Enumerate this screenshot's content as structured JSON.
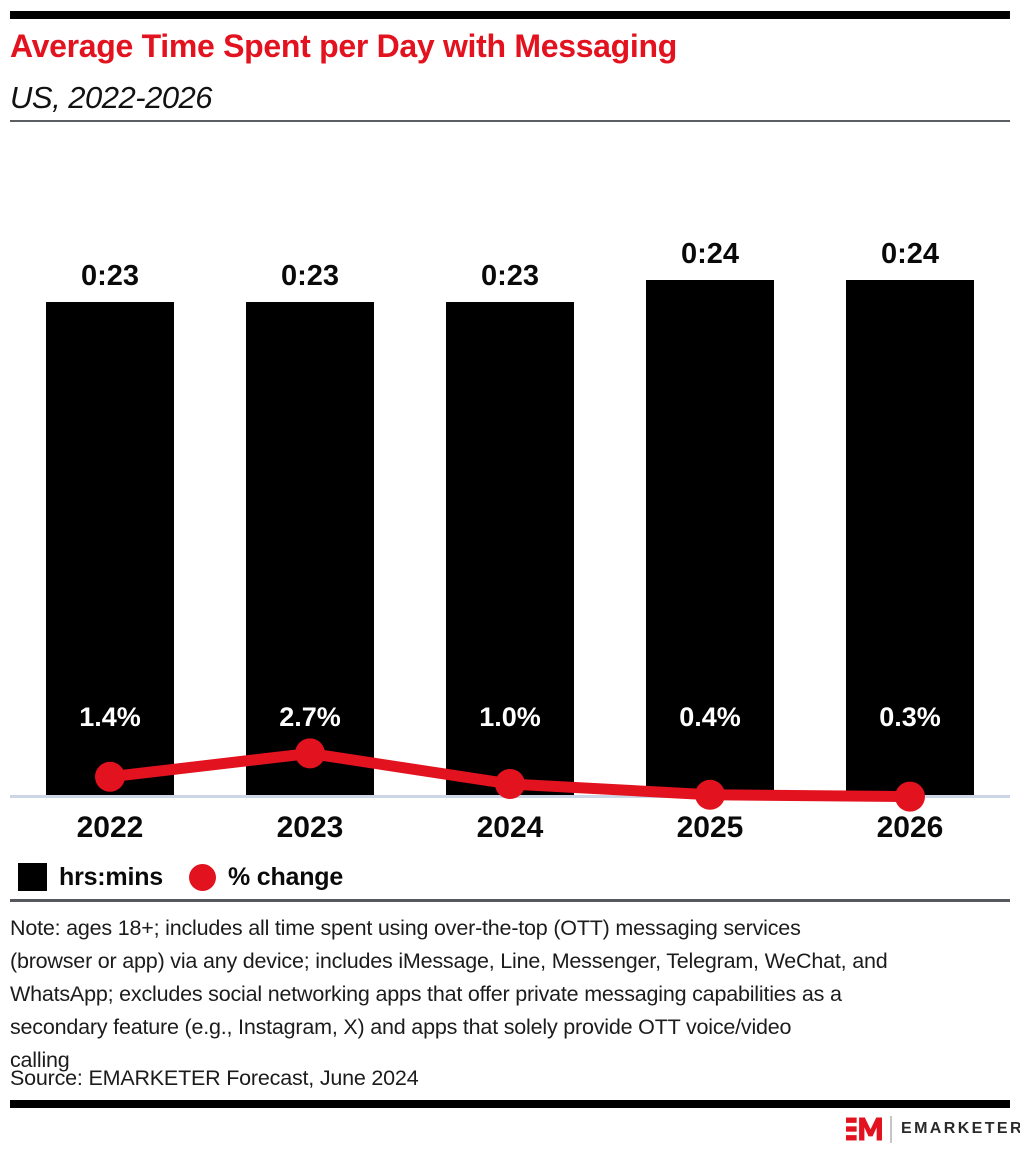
{
  "header": {
    "title": "Average Time Spent per Day with Messaging",
    "subtitle": "US, 2022-2026"
  },
  "chart_data": {
    "type": "bar",
    "title": "Average Time Spent per Day with Messaging",
    "subtitle": "US, 2022-2026",
    "categories": [
      "2022",
      "2023",
      "2024",
      "2025",
      "2026"
    ],
    "series": [
      {
        "name": "hrs:mins",
        "type": "bar",
        "unit": "minutes",
        "values": [
          23,
          23,
          23,
          24,
          24
        ],
        "labels": [
          "0:23",
          "0:23",
          "0:23",
          "0:24",
          "0:24"
        ],
        "color": "#000000"
      },
      {
        "name": "% change",
        "type": "line",
        "unit": "percent",
        "values": [
          1.4,
          2.7,
          1.0,
          0.4,
          0.3
        ],
        "labels": [
          "1.4%",
          "2.7%",
          "1.0%",
          "0.4%",
          "0.3%"
        ],
        "color": "#e3121f"
      }
    ],
    "xlabel": "",
    "ylabel": "",
    "grid": false,
    "legend_position": "bottom-left",
    "bar_axis_range_minutes": [
      0,
      24
    ]
  },
  "legend": {
    "items": [
      {
        "label": "hrs:mins",
        "swatch": "square",
        "color": "#000000"
      },
      {
        "label": "% change",
        "swatch": "circle",
        "color": "#e3121f"
      }
    ]
  },
  "note": {
    "lines": [
      "Note: ages 18+; includes all time spent using over-the-top (OTT) messaging services",
      "(browser or app) via any device; includes iMessage, Line, Messenger, Telegram, WeChat, and",
      "WhatsApp; excludes social networking apps that offer private messaging capabilities as a",
      "secondary feature (e.g., Instagram, X) and apps that solely provide OTT voice/video",
      "calling"
    ]
  },
  "source": {
    "text": "Source: EMARKETER Forecast, June 2024"
  },
  "footer": {
    "brand_monogram": "EM",
    "brand_name": "EMARKETER"
  },
  "colors": {
    "accent_red": "#e3121f",
    "bar_black": "#000000",
    "axis_line": "#ccd6e6"
  }
}
